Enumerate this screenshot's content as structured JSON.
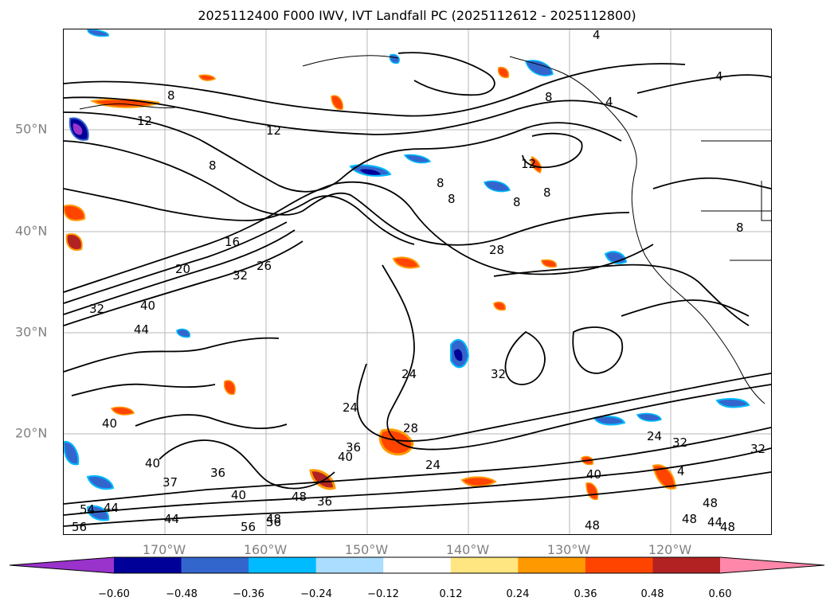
{
  "title": "2025112400 F000 IWV, IVT Landfall PC (2025112612 - 2025112800)",
  "lat_labels": [
    "50°N",
    "40°N",
    "30°N",
    "20°N"
  ],
  "lon_labels": [
    "170°W",
    "160°W",
    "150°W",
    "140°W",
    "130°W",
    "120°W"
  ],
  "colorbar": {
    "ticks": [
      "−0.60",
      "−0.48",
      "−0.36",
      "−0.24",
      "−0.12",
      "0.12",
      "0.24",
      "0.36",
      "0.48",
      "0.60"
    ],
    "colors": [
      "#9933cc",
      "#000099",
      "#3366cc",
      "#00bbff",
      "#aaddff",
      "#ffffff",
      "#ffe680",
      "#ff9900",
      "#ff4400",
      "#b22222",
      "#ff88aa"
    ]
  },
  "contour_labels": [
    "8",
    "12",
    "12",
    "8",
    "16",
    "20",
    "32",
    "26",
    "32",
    "40",
    "44",
    "28",
    "8",
    "8",
    "8",
    "12",
    "8",
    "4",
    "4",
    "4",
    "8",
    "24",
    "32",
    "24",
    "28",
    "36",
    "40",
    "24",
    "24",
    "32",
    "40",
    "40",
    "40",
    "37",
    "36",
    "40",
    "48",
    "36",
    "56",
    "56",
    "48",
    "44",
    "54",
    "44",
    "56",
    "48",
    "48",
    "48",
    "44",
    "48",
    "32",
    "4",
    "8"
  ],
  "colors": {
    "contour": "#000000",
    "coast": "#000000",
    "grid": "#999999",
    "axis_label": "#808080"
  }
}
